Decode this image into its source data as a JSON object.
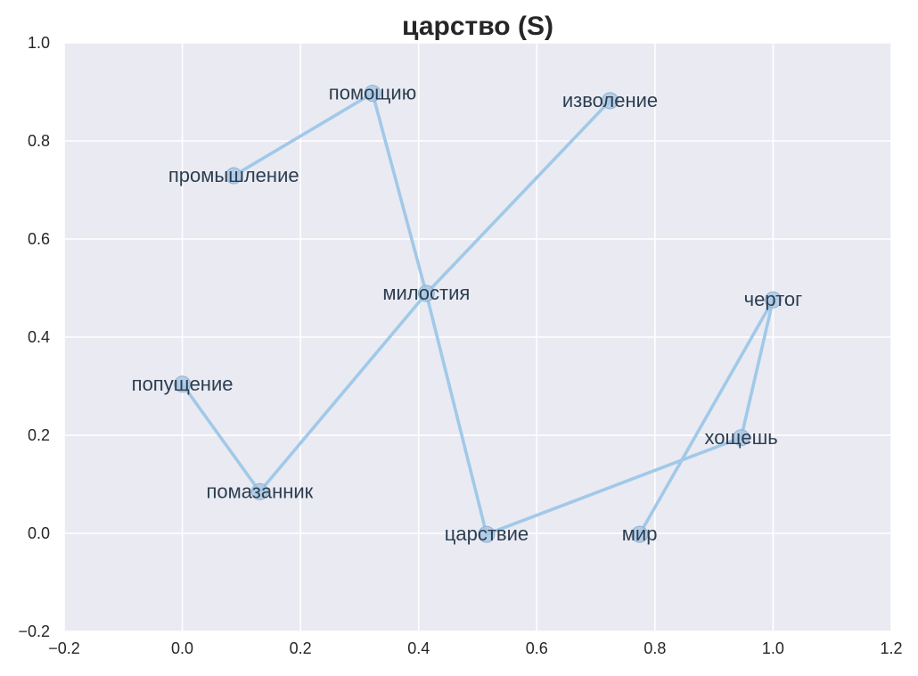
{
  "chart_data": {
    "type": "line",
    "title": "царство (S)",
    "xlabel": "",
    "ylabel": "",
    "xlim": [
      -0.2,
      1.2
    ],
    "ylim": [
      -0.2,
      1.0
    ],
    "x_ticks": [
      -0.2,
      0.0,
      0.2,
      0.4,
      0.6,
      0.8,
      1.0,
      1.2
    ],
    "y_ticks": [
      -0.2,
      0.0,
      0.2,
      0.4,
      0.6,
      0.8,
      1.0
    ],
    "x_tick_labels": [
      "−0.2",
      "0.0",
      "0.2",
      "0.4",
      "0.6",
      "0.8",
      "1.0",
      "1.2"
    ],
    "y_tick_labels": [
      "−0.2",
      "0.0",
      "0.2",
      "0.4",
      "0.6",
      "0.8",
      "1.0"
    ],
    "grid": true,
    "background": "#eaeaf2",
    "line_color": "#a1c9e8",
    "points": [
      {
        "label": "промышление",
        "x": 0.087,
        "y": 0.729
      },
      {
        "label": "помощию",
        "x": 0.322,
        "y": 0.897
      },
      {
        "label": "милостия",
        "x": 0.413,
        "y": 0.489
      },
      {
        "label": "царствие",
        "x": 0.515,
        "y": -0.002
      },
      {
        "label": "хощешь",
        "x": 0.946,
        "y": 0.195
      },
      {
        "label": "чертог",
        "x": 1.0,
        "y": 0.476
      },
      {
        "label": "мир",
        "x": 0.774,
        "y": -0.002
      },
      {
        "label": "попущение",
        "x": 0.0,
        "y": 0.304
      },
      {
        "label": "помазанник",
        "x": 0.131,
        "y": 0.085
      },
      {
        "label": "изволение",
        "x": 0.724,
        "y": 0.882
      }
    ],
    "path": [
      [
        "промышление",
        "помощию",
        "милостия",
        "царствие",
        "хощешь",
        "чертог",
        "мир"
      ],
      [
        "попущение",
        "помазанник",
        "милостия",
        "изволение"
      ]
    ]
  }
}
